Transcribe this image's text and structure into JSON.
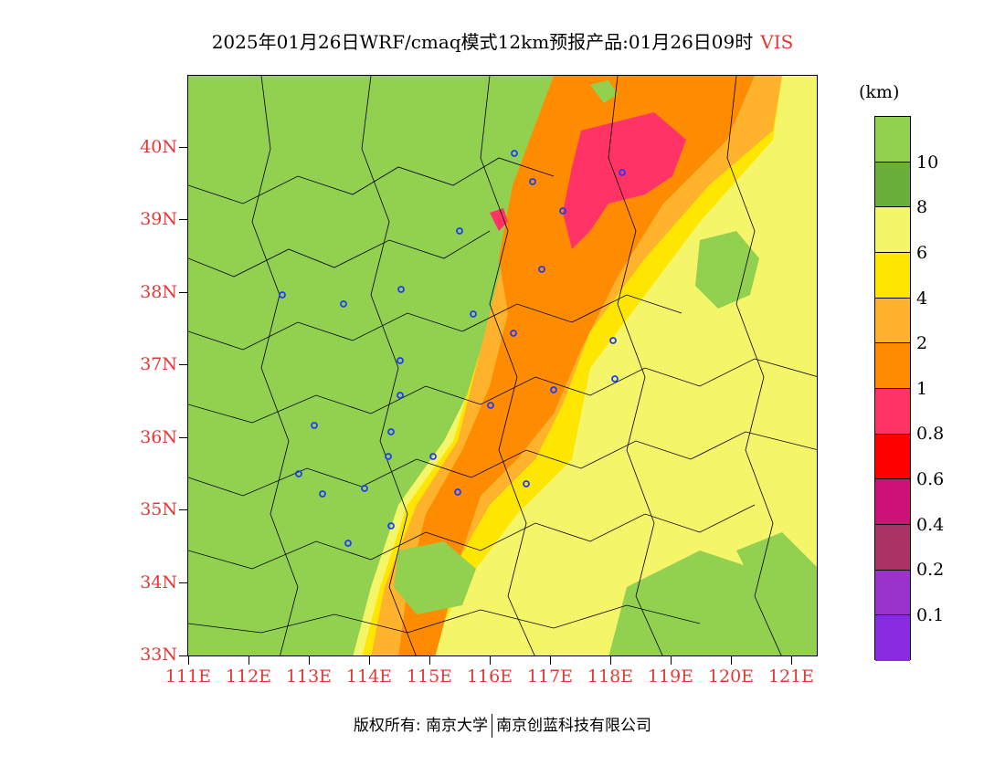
{
  "title": {
    "main": "2025年01月26日WRF/cmaq模式12km预报产品:01月26日09时",
    "variable": "VIS"
  },
  "axes": {
    "lat_labels": [
      "40N",
      "39N",
      "38N",
      "37N",
      "36N",
      "35N",
      "34N",
      "33N"
    ],
    "lon_labels": [
      "111E",
      "112E",
      "113E",
      "114E",
      "115E",
      "116E",
      "117E",
      "118E",
      "119E",
      "120E",
      "121E"
    ]
  },
  "colorbar": {
    "unit": "(km)",
    "levels": [
      "10",
      "8",
      "6",
      "4",
      "2",
      "1",
      "0.8",
      "0.6",
      "0.4",
      "0.2",
      "0.1"
    ],
    "colors": [
      "#92d050",
      "#6aaf3a",
      "#f5f56a",
      "#ffe600",
      "#ffb22c",
      "#ff8c00",
      "#ff3366",
      "#ff0000",
      "#cc1177",
      "#aa3366",
      "#9933cc",
      "#8a2be2"
    ]
  },
  "copyright": {
    "left": "版权所有: 南京大学",
    "right": "南京创蓝科技有限公司"
  }
}
